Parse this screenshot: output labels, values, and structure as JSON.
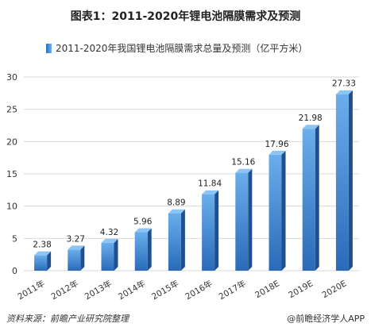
{
  "title": "图表1：2011-2020年锂电池隔膜需求及预测",
  "footer": {
    "source": "资料来源：前瞻产业研究院整理",
    "credit": "@前瞻经济学人APP"
  },
  "colors": {
    "bar_front_top": "#6aaeec",
    "bar_front_bottom": "#2a6ab8",
    "bar_side": "#1f4f8f",
    "bar_top": "#8cc4f4",
    "grid": "#d9d9d9"
  },
  "chart_data": {
    "type": "bar",
    "categories": [
      "2011年",
      "2012年",
      "2013年",
      "2014年",
      "2015年",
      "2016年",
      "2017年",
      "2018E",
      "2019E",
      "2020E"
    ],
    "series": [
      {
        "name": "2011-2020年我国锂电池隔膜需求总量及预测（亿平方米）",
        "values": [
          2.38,
          3.27,
          4.32,
          5.96,
          8.89,
          11.84,
          15.16,
          17.96,
          21.98,
          27.33
        ]
      }
    ],
    "data_labels": [
      "2.38",
      "3.27",
      "4.32",
      "5.96",
      "8.89",
      "11.84",
      "15.16",
      "17.96",
      "21.98",
      "27.33"
    ],
    "yticks": [
      "0",
      "5",
      "10",
      "15",
      "20",
      "25",
      "30"
    ],
    "ylim": [
      0,
      30
    ],
    "grid": true,
    "legend": "top"
  }
}
